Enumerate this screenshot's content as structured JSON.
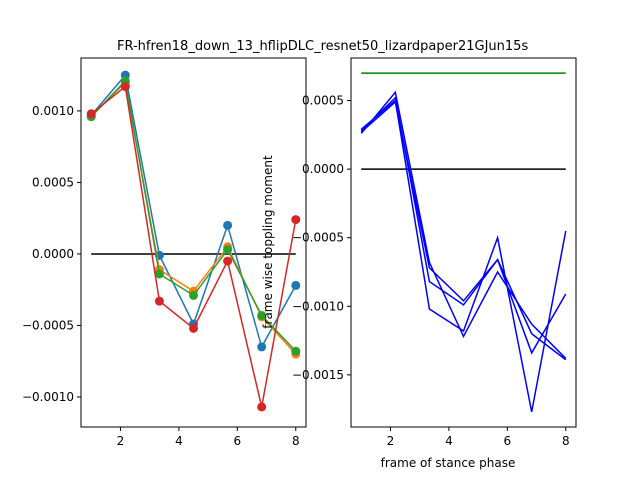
{
  "figure": {
    "title": "FR-hfren18_down_13_hflipDLC_resnet50_lizardpaper21GJun15s"
  },
  "chart_data": [
    {
      "type": "line",
      "markers": true,
      "x": [
        1,
        2.1667,
        3.3333,
        4.5,
        5.6667,
        6.8333,
        8
      ],
      "xlim": [
        0.65,
        8.35
      ],
      "ylim": [
        -0.00121,
        0.00137
      ],
      "xticks": [
        2,
        4,
        6,
        8
      ],
      "xtick_labels": [
        "2",
        "4",
        "6",
        "8"
      ],
      "yticks": [
        -0.001,
        -0.0005,
        0.0,
        0.0005,
        0.001
      ],
      "ytick_labels": [
        "−0.0010",
        "−0.0005",
        "0.0000",
        "0.0005",
        "0.0010"
      ],
      "xlabel": "",
      "ylabel": "",
      "reference_line": {
        "x": [
          1,
          8
        ],
        "y": 0,
        "color": "#000000"
      },
      "series": [
        {
          "color": "#1f77b4",
          "values": [
            0.00097,
            0.00125,
            -1e-05,
            -0.00049,
            0.0002,
            -0.00065,
            -0.00022
          ]
        },
        {
          "color": "#ff7f0e",
          "values": [
            0.00096,
            0.0012,
            -0.00011,
            -0.00026,
            5e-05,
            -0.00044,
            -0.0007
          ]
        },
        {
          "color": "#2ca02c",
          "values": [
            0.00096,
            0.00121,
            -0.00014,
            -0.00029,
            3e-05,
            -0.00043,
            -0.00068
          ]
        },
        {
          "color": "#d62728",
          "values": [
            0.00098,
            0.00117,
            -0.00033,
            -0.00052,
            -5e-05,
            -0.00107,
            0.00024
          ]
        }
      ]
    },
    {
      "type": "line",
      "markers": false,
      "x": [
        1,
        2.1667,
        3.3333,
        4.5,
        5.6667,
        6.8333,
        8
      ],
      "xlim": [
        0.65,
        8.35
      ],
      "ylim": [
        -0.00188,
        0.00081
      ],
      "xticks": [
        2,
        4,
        6,
        8
      ],
      "xtick_labels": [
        "2",
        "4",
        "6",
        "8"
      ],
      "yticks": [
        -0.0015,
        -0.001,
        -0.0005,
        0.0,
        0.0005
      ],
      "ytick_labels": [
        "−0.0015",
        "−0.0010",
        "−0.0005",
        "0.0000",
        "0.0005"
      ],
      "xlabel": "frame of stance phase",
      "ylabel": "frame wise toppling moment",
      "reference_lines": [
        {
          "x": [
            1,
            8
          ],
          "y": 0,
          "color": "#000000"
        },
        {
          "x": [
            1,
            8
          ],
          "y": 0.0007,
          "color": "#008000"
        }
      ],
      "series": [
        {
          "color": "#0000ff",
          "values": [
            0.00027,
            0.00049,
            -0.00072,
            -0.00096,
            -0.00066,
            -0.0012,
            -0.00139
          ]
        },
        {
          "color": "#0000ff",
          "values": [
            0.00026,
            0.00056,
            -0.00068,
            -0.00122,
            -0.00075,
            -0.00113,
            -0.00138
          ]
        },
        {
          "color": "#0000ff",
          "values": [
            0.00029,
            0.0005,
            -0.00102,
            -0.00118,
            -0.0005,
            -0.00177,
            -0.00045
          ]
        },
        {
          "color": "#0000ff",
          "values": [
            0.00028,
            0.00052,
            -0.00082,
            -0.00099,
            -0.00066,
            -0.00134,
            -0.00091
          ]
        }
      ]
    }
  ]
}
